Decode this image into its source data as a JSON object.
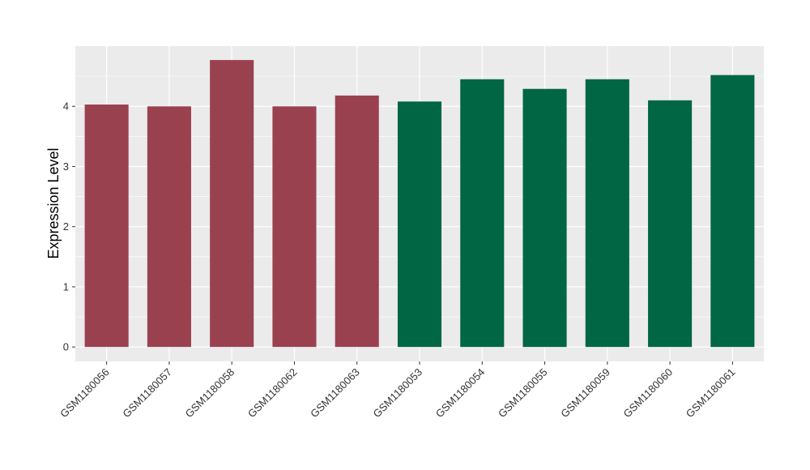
{
  "chart_data": {
    "type": "bar",
    "title": "",
    "xlabel": "",
    "ylabel": "Expression Level",
    "ylim": [
      -0.24,
      5.0
    ],
    "yticks": [
      0,
      1,
      2,
      3,
      4
    ],
    "grid": true,
    "legend": "none",
    "categories": [
      "GSM1180056",
      "GSM1180057",
      "GSM1180058",
      "GSM1180062",
      "GSM1180063",
      "GSM1180053",
      "GSM1180054",
      "GSM1180055",
      "GSM1180059",
      "GSM1180060",
      "GSM1180061"
    ],
    "values": [
      4.03,
      4.0,
      4.77,
      4.0,
      4.18,
      4.08,
      4.45,
      4.29,
      4.45,
      4.1,
      4.52
    ],
    "bar_colors": [
      "#9A4150",
      "#9A4150",
      "#9A4150",
      "#9A4150",
      "#9A4150",
      "#006644",
      "#006644",
      "#006644",
      "#006644",
      "#006644",
      "#006644"
    ],
    "panel_background": "#EBEBEB"
  }
}
